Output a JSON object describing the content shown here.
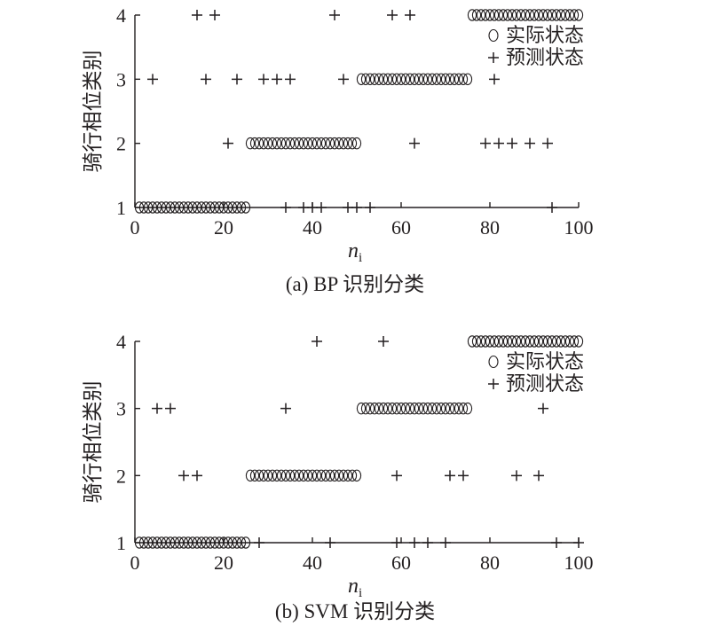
{
  "chart_data": [
    {
      "type": "scatter",
      "caption": "(a) BP 识别分类",
      "xlabel": "n",
      "xlabel_sub": "i",
      "ylabel": "骑行相位类别",
      "xlim": [
        0,
        100
      ],
      "ylim": [
        1,
        4
      ],
      "xticks": [
        "0",
        "20",
        "40",
        "60",
        "80",
        "100"
      ],
      "yticks": [
        "1",
        "2",
        "3",
        "4"
      ],
      "legend": {
        "position": "top-right"
      },
      "series": [
        {
          "name": "实际状态",
          "marker": "circle",
          "segments": [
            {
              "y": 1,
              "x_from": 1,
              "x_to": 25
            },
            {
              "y": 2,
              "x_from": 26,
              "x_to": 50
            },
            {
              "y": 3,
              "x_from": 51,
              "x_to": 75
            },
            {
              "y": 4,
              "x_from": 76,
              "x_to": 100
            }
          ]
        },
        {
          "name": "预测状态",
          "marker": "plus",
          "points": [
            [
              14,
              4
            ],
            [
              18,
              4
            ],
            [
              45,
              4
            ],
            [
              58,
              4
            ],
            [
              62,
              4
            ],
            [
              4,
              3
            ],
            [
              16,
              3
            ],
            [
              23,
              3
            ],
            [
              29,
              3
            ],
            [
              32,
              3
            ],
            [
              35,
              3
            ],
            [
              47,
              3
            ],
            [
              81,
              3
            ],
            [
              21,
              2
            ],
            [
              63,
              2
            ],
            [
              79,
              2
            ],
            [
              82,
              2
            ],
            [
              85,
              2
            ],
            [
              89,
              2
            ],
            [
              93,
              2
            ],
            [
              34,
              1
            ],
            [
              38,
              1
            ],
            [
              40,
              1
            ],
            [
              42,
              1
            ],
            [
              48,
              1
            ],
            [
              50,
              1
            ],
            [
              53,
              1
            ],
            [
              94,
              1
            ]
          ]
        }
      ]
    },
    {
      "type": "scatter",
      "caption": "(b) SVM 识别分类",
      "xlabel": "n",
      "xlabel_sub": "i",
      "ylabel": "骑行相位类别",
      "xlim": [
        0,
        100
      ],
      "ylim": [
        1,
        4
      ],
      "xticks": [
        "0",
        "20",
        "40",
        "60",
        "80",
        "100"
      ],
      "yticks": [
        "1",
        "2",
        "3",
        "4"
      ],
      "legend": {
        "position": "top-right"
      },
      "series": [
        {
          "name": "实际状态",
          "marker": "circle",
          "segments": [
            {
              "y": 1,
              "x_from": 1,
              "x_to": 25
            },
            {
              "y": 2,
              "x_from": 26,
              "x_to": 50
            },
            {
              "y": 3,
              "x_from": 51,
              "x_to": 75
            },
            {
              "y": 4,
              "x_from": 76,
              "x_to": 100
            }
          ]
        },
        {
          "name": "预测状态",
          "marker": "plus",
          "points": [
            [
              41,
              4
            ],
            [
              56,
              4
            ],
            [
              5,
              3
            ],
            [
              8,
              3
            ],
            [
              34,
              3
            ],
            [
              92,
              3
            ],
            [
              11,
              2
            ],
            [
              14,
              2
            ],
            [
              59,
              2
            ],
            [
              71,
              2
            ],
            [
              74,
              2
            ],
            [
              86,
              2
            ],
            [
              91,
              2
            ],
            [
              28,
              1
            ],
            [
              44,
              1
            ],
            [
              59,
              1
            ],
            [
              63,
              1
            ],
            [
              66,
              1
            ],
            [
              70,
              1
            ],
            [
              95,
              1
            ],
            [
              100,
              1
            ]
          ]
        }
      ]
    }
  ]
}
